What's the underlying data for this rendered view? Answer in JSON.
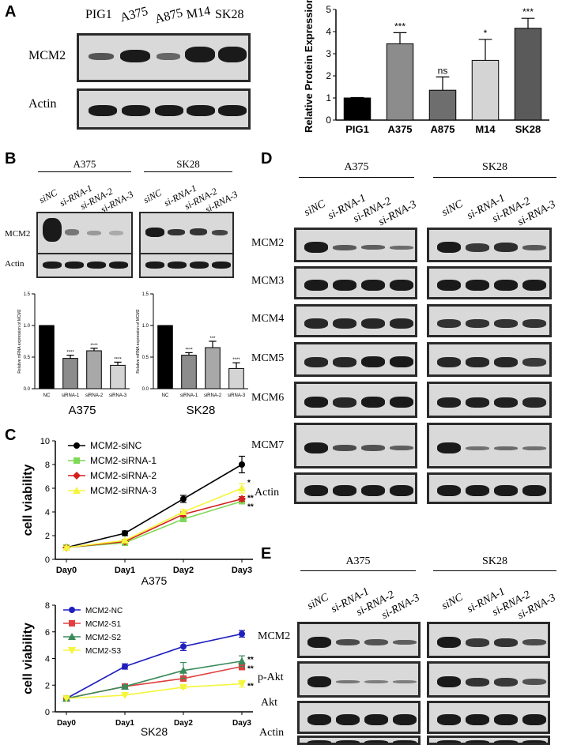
{
  "panels": {
    "A": "A",
    "B": "B",
    "C": "C",
    "D": "D",
    "E": "E"
  },
  "panelA": {
    "lanes": [
      "PIG1",
      "A375",
      "A875",
      "M14",
      "SK28"
    ],
    "rows": [
      "MCM2",
      "Actin"
    ]
  },
  "panelB": {
    "groups": [
      "A375",
      "SK28"
    ],
    "lanes": [
      "siNC",
      "si-RNA-1",
      "si-RNA-2",
      "si-RNA-3"
    ],
    "rows": [
      "MCM2",
      "Actin"
    ]
  },
  "panelD": {
    "groups": [
      "A375",
      "SK28"
    ],
    "lanes": [
      "siNC",
      "si-RNA-1",
      "si-RNA-2",
      "si-RNA-3"
    ],
    "rows": [
      "MCM2",
      "MCM3",
      "MCM4",
      "MCM5",
      "MCM6",
      "MCM7",
      "Actin"
    ]
  },
  "panelE": {
    "groups": [
      "A375",
      "SK28"
    ],
    "lanes": [
      "siNC",
      "si-RNA-1",
      "si-RNA-2",
      "si-RNA-3"
    ],
    "rows": [
      "MCM2",
      "p-Akt",
      "Akt",
      "Actin"
    ]
  },
  "chart_data": [
    {
      "id": "A_bar",
      "type": "bar",
      "ylabel": "Relative Protein Expression",
      "categories": [
        "PIG1",
        "A375",
        "A875",
        "M14",
        "SK28"
      ],
      "values": [
        1.0,
        3.45,
        1.35,
        2.7,
        4.15
      ],
      "errors": [
        0.02,
        0.5,
        0.6,
        0.95,
        0.45
      ],
      "annotations": [
        "",
        "***",
        "ns",
        "*",
        "***"
      ],
      "colors": [
        "#000000",
        "#8c8c8c",
        "#6e6e6e",
        "#d4d4d4",
        "#5a5a5a"
      ],
      "ylim": [
        0,
        5
      ],
      "yticks": [
        0,
        1,
        2,
        3,
        4,
        5
      ]
    },
    {
      "id": "B_bar_A375",
      "type": "bar",
      "title": "A375",
      "ylabel": "Relative mRNA expression of MCM2",
      "categories": [
        "NC",
        "siRNA-1",
        "siRNA-2",
        "siRNA-3"
      ],
      "values": [
        1.0,
        0.48,
        0.6,
        0.37
      ],
      "errors": [
        0,
        0.05,
        0.04,
        0.05
      ],
      "annotations": [
        "",
        "****",
        "****",
        "****"
      ],
      "colors": [
        "#000000",
        "#8c8c8c",
        "#a8a8a8",
        "#d4d4d4"
      ],
      "ylim": [
        0,
        1.5
      ],
      "yticks": [
        "0.0",
        "0.5",
        "1.0",
        "1.5"
      ]
    },
    {
      "id": "B_bar_SK28",
      "type": "bar",
      "title": "SK28",
      "ylabel": "Relative mRNA expression of MCM2",
      "categories": [
        "NC",
        "siRNA-1",
        "siRNA-2",
        "siRNA-3"
      ],
      "values": [
        1.0,
        0.53,
        0.65,
        0.32
      ],
      "errors": [
        0,
        0.04,
        0.1,
        0.09
      ],
      "annotations": [
        "",
        "****",
        "***",
        "****"
      ],
      "colors": [
        "#000000",
        "#8c8c8c",
        "#a8a8a8",
        "#d4d4d4"
      ],
      "ylim": [
        0,
        1.5
      ],
      "yticks": [
        "0.0",
        "0.5",
        "1.0",
        "1.5"
      ]
    },
    {
      "id": "C_line_A375",
      "type": "line",
      "title": "A375",
      "ylabel": "cell viability",
      "categories": [
        "Day0",
        "Day1",
        "Day2",
        "Day3"
      ],
      "ylim": [
        0,
        10
      ],
      "yticks": [
        0,
        2,
        4,
        6,
        8,
        10
      ],
      "series": [
        {
          "name": "MCM2-siNC",
          "color": "#000000",
          "marker": "circle",
          "values": [
            1.0,
            2.2,
            5.1,
            8.0
          ],
          "errors": [
            0.1,
            0.2,
            0.3,
            0.7
          ],
          "annotation": ""
        },
        {
          "name": "MCM2-siRNA-1",
          "color": "#7ed957",
          "marker": "square",
          "values": [
            1.0,
            1.4,
            3.4,
            4.9
          ],
          "errors": [
            0.1,
            0.1,
            0.2,
            0.2
          ],
          "annotation": "**"
        },
        {
          "name": "MCM2-siRNA-2",
          "color": "#d32020",
          "marker": "diamond",
          "values": [
            1.0,
            1.5,
            3.8,
            5.1
          ],
          "errors": [
            0.1,
            0.1,
            0.2,
            0.2
          ],
          "annotation": "**"
        },
        {
          "name": "MCM2-siRNA-3",
          "color": "#f5f53c",
          "marker": "triangle",
          "values": [
            1.0,
            1.6,
            4.0,
            6.0
          ],
          "errors": [
            0.1,
            0.1,
            0.2,
            0.4
          ],
          "annotation": "*"
        }
      ]
    },
    {
      "id": "C_line_SK28",
      "type": "line",
      "title": "SK28",
      "ylabel": "cell viability",
      "categories": [
        "Day0",
        "Day1",
        "Day2",
        "Day3"
      ],
      "ylim": [
        0,
        8
      ],
      "yticks": [
        0,
        2,
        4,
        6,
        8
      ],
      "series": [
        {
          "name": "MCM2-NC",
          "color": "#1f1fbf",
          "marker": "circle",
          "values": [
            1.0,
            3.4,
            4.9,
            5.85
          ],
          "errors": [
            0.05,
            0.2,
            0.3,
            0.25
          ],
          "annotation": ""
        },
        {
          "name": "MCM2-S1",
          "color": "#e04040",
          "marker": "square",
          "values": [
            1.0,
            1.9,
            2.5,
            3.4
          ],
          "errors": [
            0.05,
            0.1,
            0.2,
            0.25
          ],
          "annotation": "**"
        },
        {
          "name": "MCM2-S2",
          "color": "#3a8a5a",
          "marker": "triangle",
          "values": [
            1.0,
            1.9,
            3.1,
            3.8
          ],
          "errors": [
            0.05,
            0.1,
            0.6,
            0.4
          ],
          "annotation": "**"
        },
        {
          "name": "MCM2-S3",
          "color": "#f5f53c",
          "marker": "triangle-down",
          "values": [
            1.0,
            1.25,
            1.85,
            2.1
          ],
          "errors": [
            0.05,
            0.05,
            0.1,
            0.25
          ],
          "annotation": "**"
        }
      ]
    }
  ]
}
